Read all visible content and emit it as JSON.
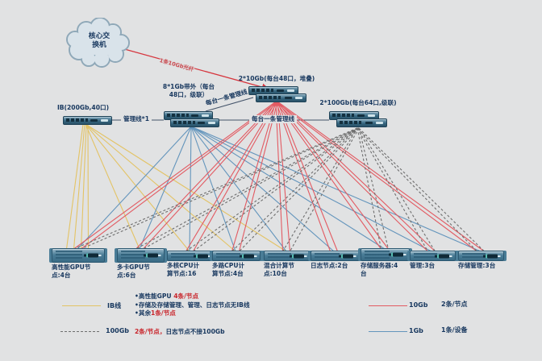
{
  "cloud": {
    "label": "核心交\n换机"
  },
  "switches": {
    "ib": {
      "label": "IB(200Gb,40口)"
    },
    "mgmt": {
      "label": "8*1Gb带外（每台\n48口，级联）"
    },
    "core": {
      "label": "2*10Gb(每台48口，堆叠)"
    },
    "s100": {
      "label": "2*100Gb(每台64口,级联)"
    }
  },
  "link_labels": {
    "fiber": "1条10Gb光纤",
    "single": "管理线*1",
    "diag": "每台一条管理线",
    "horiz": "每台一条管理线"
  },
  "servers": [
    {
      "label": "高性能GPU节\n点:4台"
    },
    {
      "label": "多卡GPU节\n点:6台"
    },
    {
      "label": "多核CPU计\n算节点:16"
    },
    {
      "label": "多路CPU计\n算节点:4台"
    },
    {
      "label": "混合计算节\n点:10台"
    },
    {
      "label": "日志节点:2台"
    },
    {
      "label": "存储服务器:4\n台"
    },
    {
      "label": "管理:3台"
    },
    {
      "label": "存储管理:3台"
    }
  ],
  "legend": {
    "ib_label": "IB线",
    "ib_notes": [
      {
        "dark": "•高性能GPU ",
        "red": "4条/节点"
      },
      {
        "dark": "•存储及存储管理、管理、日志节点无IB线",
        "red": ""
      },
      {
        "dark": "•其余",
        "red": "1条/节点"
      }
    ],
    "g100_label": "100Gb",
    "g100_red": "2条/节点，",
    "g100_dark": "日志节点不接100Gb",
    "g10_label": "10Gb",
    "g10_note": "2条/节点",
    "g1_label": "1Gb",
    "g1_note": "1条/设备"
  },
  "colors": {
    "ib": "#E3C365",
    "g1": "#6495BC",
    "g10": "#E25A62",
    "g100": "#6E6E6E",
    "mgmt": "#44546A",
    "fiber": "#D6363E"
  },
  "topology": {
    "edges": [
      {
        "from": "cloud",
        "to": "core_t",
        "type": "fiber",
        "arrow": true
      },
      {
        "from": "ib_r",
        "to": "mg_l",
        "type": "mgmt"
      },
      {
        "from": "mg_tr",
        "to": "core_bl",
        "type": "mgmt"
      },
      {
        "from": "mg_r",
        "to": "s1_l",
        "type": "mgmt"
      },
      {
        "from": "ib_b",
        "to": "srv0",
        "type": "ib",
        "count": 4
      },
      {
        "from": "ib_b",
        "to": "srv1",
        "type": "ib"
      },
      {
        "from": "ib_b",
        "to": "srv2",
        "type": "ib"
      },
      {
        "from": "ib_b",
        "to": "srv3",
        "type": "ib"
      },
      {
        "from": "ib_b",
        "to": "srv4",
        "type": "ib"
      },
      {
        "from": "mg_b",
        "to": "srv0",
        "type": "g1"
      },
      {
        "from": "mg_b",
        "to": "srv1",
        "type": "g1"
      },
      {
        "from": "mg_b",
        "to": "srv2",
        "type": "g1"
      },
      {
        "from": "mg_b",
        "to": "srv3",
        "type": "g1"
      },
      {
        "from": "mg_b",
        "to": "srv4",
        "type": "g1"
      },
      {
        "from": "mg_b",
        "to": "srv5",
        "type": "g1"
      },
      {
        "from": "mg_b",
        "to": "srv6",
        "type": "g1"
      },
      {
        "from": "mg_b",
        "to": "srv7",
        "type": "g1"
      },
      {
        "from": "mg_b",
        "to": "srv8",
        "type": "g1"
      },
      {
        "from": "core_b",
        "to": "srv0",
        "type": "g10",
        "count": 2
      },
      {
        "from": "core_b",
        "to": "srv1",
        "type": "g10",
        "count": 2
      },
      {
        "from": "core_b",
        "to": "srv2",
        "type": "g10",
        "count": 2
      },
      {
        "from": "core_b",
        "to": "srv3",
        "type": "g10",
        "count": 2
      },
      {
        "from": "core_b",
        "to": "srv4",
        "type": "g10",
        "count": 2
      },
      {
        "from": "core_b",
        "to": "srv5",
        "type": "g10",
        "count": 2
      },
      {
        "from": "core_b",
        "to": "srv6",
        "type": "g10",
        "count": 2
      },
      {
        "from": "core_b",
        "to": "srv7",
        "type": "g10",
        "count": 2
      },
      {
        "from": "core_b",
        "to": "srv8",
        "type": "g10",
        "count": 2
      },
      {
        "from": "s1_b",
        "to": "srv0",
        "type": "g100",
        "count": 2
      },
      {
        "from": "s1_b",
        "to": "srv1",
        "type": "g100",
        "count": 2
      },
      {
        "from": "s1_b",
        "to": "srv2",
        "type": "g100",
        "count": 2
      },
      {
        "from": "s1_b",
        "to": "srv3",
        "type": "g100",
        "count": 2
      },
      {
        "from": "s1_b",
        "to": "srv4",
        "type": "g100",
        "count": 2
      },
      {
        "from": "s1_b",
        "to": "srv6",
        "type": "g100",
        "count": 2
      },
      {
        "from": "s1_b",
        "to": "srv7",
        "type": "g100",
        "count": 2
      },
      {
        "from": "s1_b",
        "to": "srv8",
        "type": "g100",
        "count": 2
      }
    ]
  }
}
